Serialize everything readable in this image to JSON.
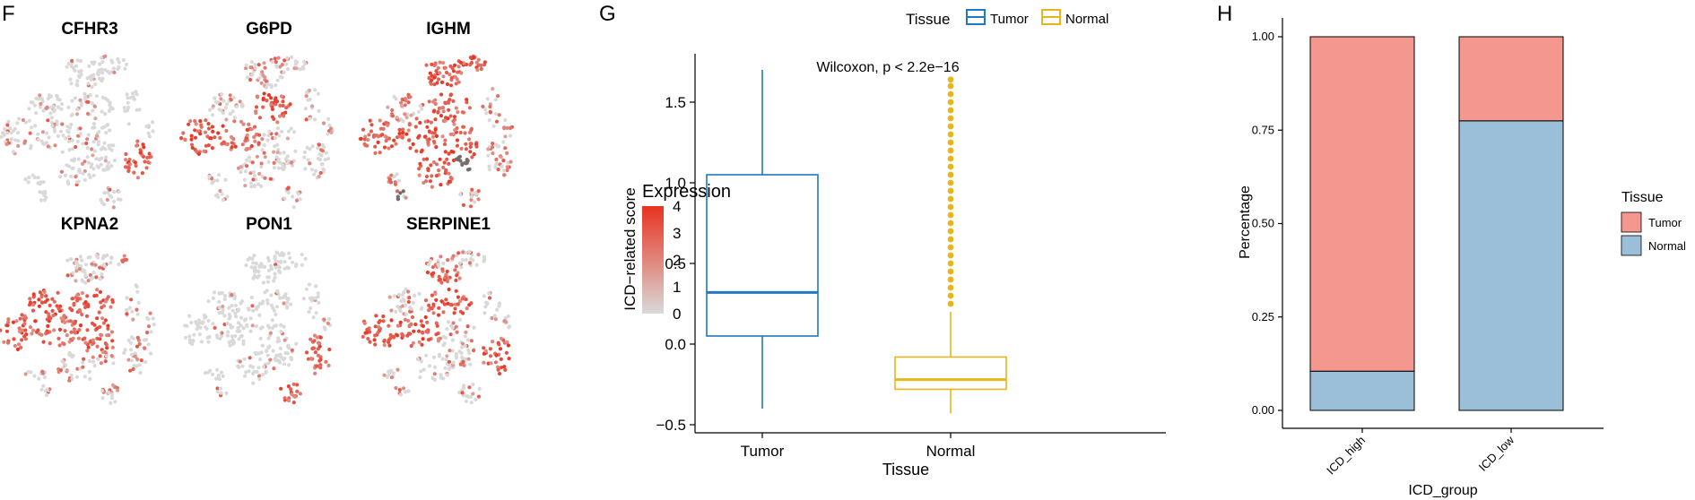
{
  "panels": {
    "f": "F",
    "g": "G",
    "h": "H"
  },
  "colors": {
    "expr_low": "#d9d9d9",
    "expr_high": "#e8321f",
    "tumor_box": "#1f78c1",
    "normal_box": "#e8b61a",
    "tumor_bar": "#f4978e",
    "normal_bar": "#9bbfd9"
  },
  "chart_data": [
    {
      "type": "umap_feature_plots",
      "panel": "F",
      "genes": [
        "CFHR3",
        "G6PD",
        "IGHM",
        "KPNA2",
        "PON1",
        "SERPINE1"
      ],
      "legend": {
        "title": "Expression",
        "ticks": [
          "4",
          "3",
          "2",
          "1",
          "0"
        ],
        "range": [
          0,
          4
        ]
      }
    },
    {
      "type": "box",
      "panel": "G",
      "categories": [
        "Tumor",
        "Normal"
      ],
      "xlabel": "Tissue",
      "ylabel": "ICD−related score",
      "ylim": [
        -0.5,
        1.75
      ],
      "yticks": [
        -0.5,
        0.0,
        0.5,
        1.0,
        1.5
      ],
      "ytick_labels": [
        "−0.5",
        "0.0",
        "0.5",
        "1.0",
        "1.5"
      ],
      "annotation": "Wilcoxon, p < 2.2e−16",
      "legend": {
        "title": "Tissue",
        "entries": [
          "Tumor",
          "Normal"
        ]
      },
      "boxes": [
        {
          "name": "Tumor",
          "min": -0.4,
          "q1": 0.05,
          "median": 0.32,
          "q3": 1.05,
          "max": 1.7
        },
        {
          "name": "Normal",
          "min": -0.43,
          "q1": -0.28,
          "median": -0.22,
          "q3": -0.08,
          "max": 0.2,
          "outliers": [
            0.25,
            0.3,
            0.35,
            0.4,
            0.45,
            0.5,
            0.55,
            0.6,
            0.65,
            0.7,
            0.75,
            0.8,
            0.85,
            0.9,
            0.95,
            1.0,
            1.05,
            1.1,
            1.15,
            1.2,
            1.25,
            1.3,
            1.35,
            1.4,
            1.45,
            1.5,
            1.55,
            1.6,
            1.64
          ]
        }
      ]
    },
    {
      "type": "stacked_bar",
      "panel": "H",
      "categories": [
        "ICD_high",
        "ICD_low"
      ],
      "xlabel": "ICD_group",
      "ylabel": "Percentage",
      "ylim": [
        0,
        1
      ],
      "yticks": [
        0,
        0.25,
        0.5,
        0.75,
        1.0
      ],
      "ytick_labels": [
        "0.00",
        "0.25",
        "0.50",
        "0.75",
        "1.00"
      ],
      "legend": {
        "title": "Tissue",
        "entries": [
          "Tumor",
          "Normal"
        ]
      },
      "series": [
        {
          "name": "Normal",
          "values": [
            0.105,
            0.775
          ]
        },
        {
          "name": "Tumor",
          "values": [
            0.895,
            0.225
          ]
        }
      ]
    }
  ]
}
